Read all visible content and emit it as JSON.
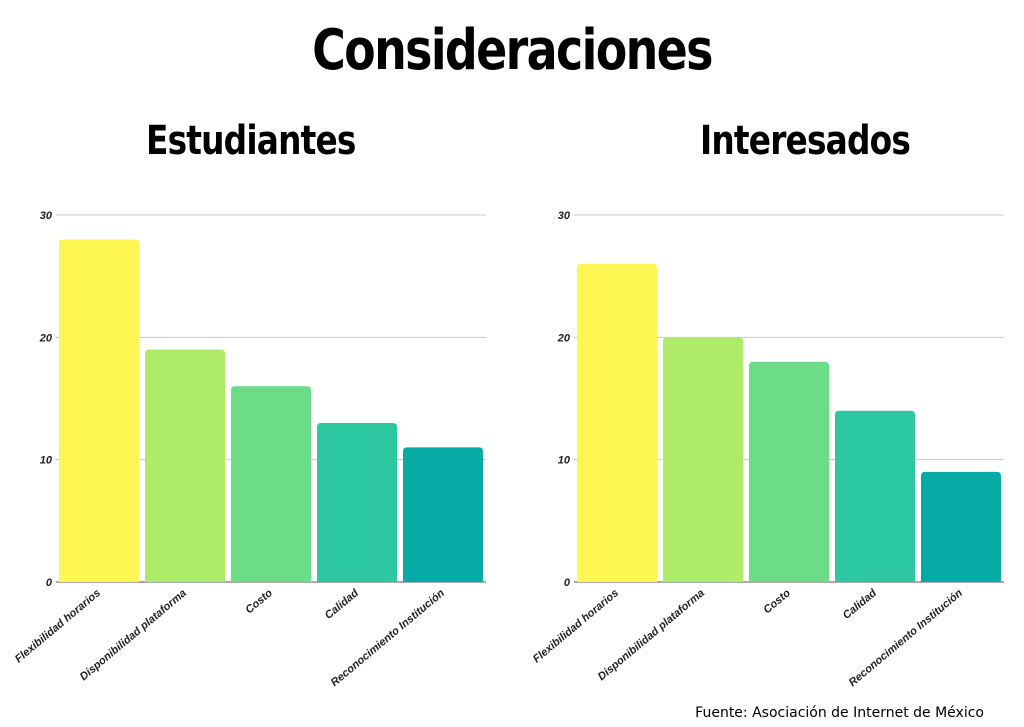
{
  "title": "Consideraciones",
  "source": "Fuente: Asociación de Internet de México",
  "chart_data": [
    {
      "type": "bar",
      "title": "Estudiantes",
      "categories": [
        "Flexibilidad horarios",
        "Disponibilidad plataforma",
        "Costo",
        "Calidad",
        "Reconocimiento Institución"
      ],
      "values": [
        28,
        19,
        16,
        13,
        11
      ],
      "colors": [
        "#fef653",
        "#aeeb66",
        "#6bdc88",
        "#2cc8a2",
        "#06aba5"
      ],
      "ylim": [
        0,
        30
      ],
      "yticks": [
        0,
        10,
        20,
        30
      ],
      "grid": true
    },
    {
      "type": "bar",
      "title": "Interesados",
      "categories": [
        "Flexibilidad horarios",
        "Disponibilidad plataforma",
        "Costo",
        "Calidad",
        "Reconocimiento Institución"
      ],
      "values": [
        26,
        20,
        18,
        14,
        9
      ],
      "colors": [
        "#fef653",
        "#aeeb66",
        "#6bdc88",
        "#2cc8a2",
        "#06aba5"
      ],
      "ylim": [
        0,
        30
      ],
      "yticks": [
        0,
        10,
        20,
        30
      ],
      "grid": true
    }
  ]
}
